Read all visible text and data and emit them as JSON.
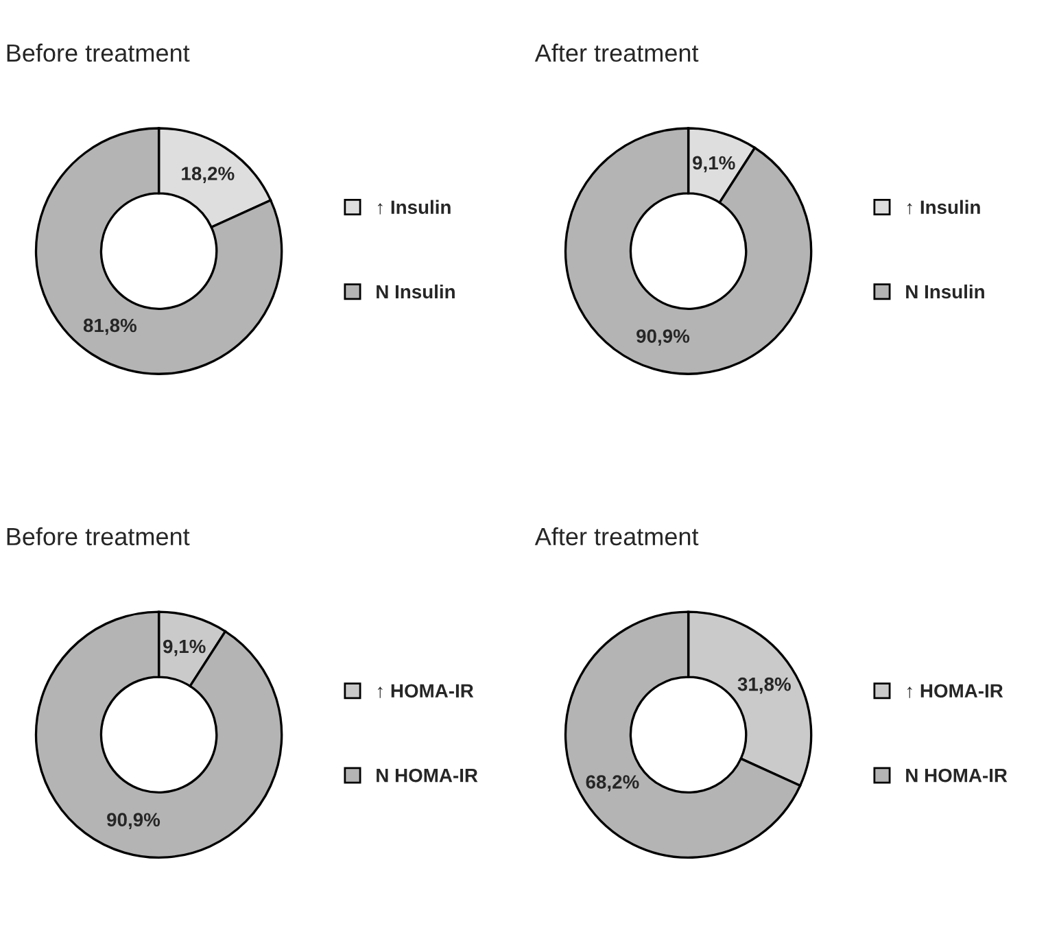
{
  "chart_data": [
    {
      "type": "donut",
      "title": "Before treatment",
      "categories": [
        "↑ Insulin",
        "N Insulin"
      ],
      "values": [
        18.2,
        81.8
      ],
      "value_labels": [
        "18,2%",
        "81,8%"
      ],
      "colors": [
        "#dedede",
        "#b4b4b4"
      ],
      "legend": "right"
    },
    {
      "type": "donut",
      "title": "After treatment",
      "categories": [
        "↑ Insulin",
        "N Insulin"
      ],
      "values": [
        9.1,
        90.9
      ],
      "value_labels": [
        "9,1%",
        "90,9%"
      ],
      "colors": [
        "#dedede",
        "#b4b4b4"
      ],
      "legend": "right"
    },
    {
      "type": "donut",
      "title": "Before treatment",
      "categories": [
        "↑ HOMA-IR",
        "N HOMA-IR"
      ],
      "values": [
        9.1,
        90.9
      ],
      "value_labels": [
        "9,1%",
        "90,9%"
      ],
      "colors": [
        "#cacaca",
        "#b4b4b4"
      ],
      "legend": "right"
    },
    {
      "type": "donut",
      "title": "After treatment",
      "categories": [
        "↑ HOMA-IR",
        "N HOMA-IR"
      ],
      "values": [
        31.8,
        68.2
      ],
      "value_labels": [
        "31,8%",
        "68,2%"
      ],
      "colors": [
        "#cacaca",
        "#b4b4b4"
      ],
      "legend": "right"
    }
  ]
}
